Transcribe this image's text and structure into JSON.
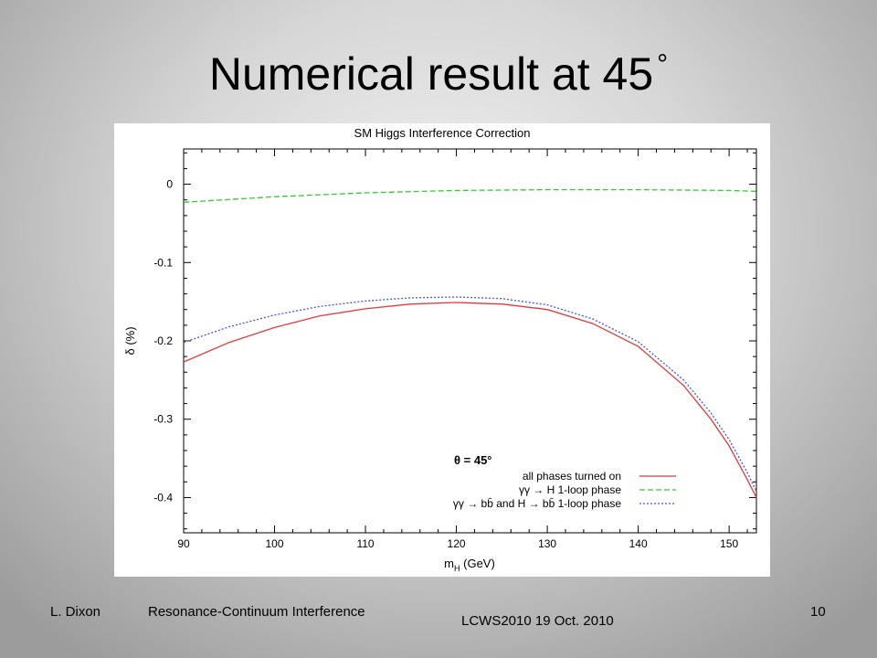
{
  "slide": {
    "title": "Numerical result at 45",
    "title_symbol": "°"
  },
  "footer": {
    "author": "L. Dixon",
    "talk": "Resonance-Continuum Interference",
    "conference": "LCWS2010   19 Oct. 2010",
    "page": "10"
  },
  "chart_data": {
    "type": "line",
    "title": "SM Higgs Interference Correction",
    "xlabel": "m",
    "xlabel_sub": "H",
    "xlabel_unit": " (GeV)",
    "ylabel": "δ (%)",
    "xlim": [
      90,
      153
    ],
    "ylim": [
      -0.445,
      0.045
    ],
    "xticks": [
      90,
      100,
      110,
      120,
      130,
      140,
      150
    ],
    "yticks": [
      0,
      -0.1,
      -0.2,
      -0.3,
      -0.4
    ],
    "ytick_labels": [
      "0",
      "-0.1",
      "-0.2",
      "-0.3",
      "-0.4"
    ],
    "grid": false,
    "legend_title": "θ = 45°",
    "legend_position": "bottom-right",
    "series": [
      {
        "name": "all phases turned on",
        "color": "#e8383b",
        "style": "solid",
        "x": [
          90,
          95,
          100,
          105,
          110,
          115,
          120,
          125,
          130,
          135,
          140,
          145,
          148,
          150,
          152,
          153
        ],
        "y": [
          -0.227,
          -0.202,
          -0.183,
          -0.168,
          -0.159,
          -0.153,
          -0.151,
          -0.153,
          -0.16,
          -0.178,
          -0.207,
          -0.257,
          -0.3,
          -0.334,
          -0.377,
          -0.4
        ]
      },
      {
        "name": "γγ → H 1-loop phase",
        "color": "#33cc33",
        "style": "dashed",
        "x": [
          90,
          100,
          110,
          120,
          130,
          140,
          150,
          153
        ],
        "y": [
          -0.023,
          -0.016,
          -0.011,
          -0.008,
          -0.007,
          -0.007,
          -0.008,
          -0.009
        ]
      },
      {
        "name": "γγ → bb̄ and H → bb̄ 1-loop phase",
        "color": "#4455dd",
        "style": "dotted",
        "x": [
          90,
          95,
          100,
          105,
          110,
          115,
          120,
          125,
          130,
          135,
          140,
          145,
          148,
          150,
          152,
          153
        ],
        "y": [
          -0.202,
          -0.182,
          -0.167,
          -0.156,
          -0.149,
          -0.145,
          -0.144,
          -0.146,
          -0.154,
          -0.172,
          -0.201,
          -0.25,
          -0.292,
          -0.326,
          -0.368,
          -0.392
        ]
      }
    ]
  }
}
